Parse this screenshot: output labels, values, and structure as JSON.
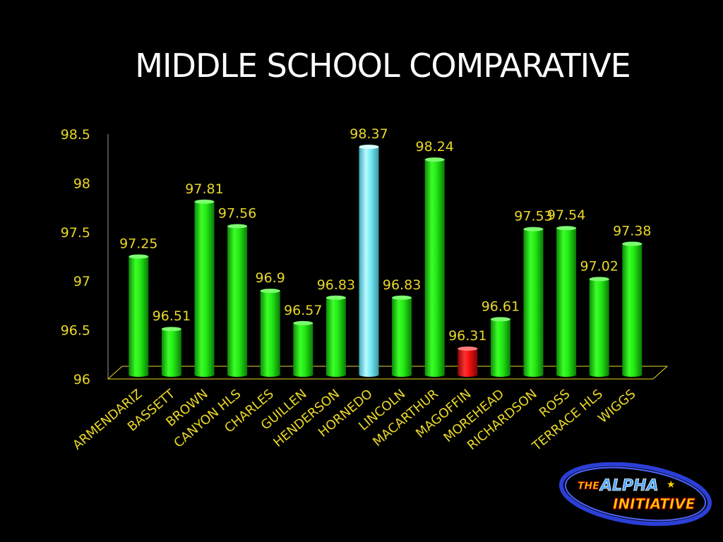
{
  "slide": {
    "title": "MIDDLE SCHOOL COMPARATIVE"
  },
  "logo": {
    "line1a": "THE",
    "line1b": "ALPHA",
    "line2": "INITIATIVE"
  },
  "colors": {
    "background": "#000000",
    "title": "#ffffff",
    "labels": "#e9d829",
    "bar_default": "#22e814",
    "bar_highest": "#74e8f2",
    "bar_lowest": "#f01010"
  },
  "chart_data": {
    "type": "bar",
    "style": "3d-cylinder",
    "title": "MIDDLE SCHOOL COMPARATIVE",
    "xlabel": "",
    "ylabel": "",
    "ylim": [
      96,
      98.5
    ],
    "yticks": [
      96,
      96.5,
      97,
      97.5,
      98,
      98.5
    ],
    "ytick_labels": [
      "96",
      "96.5",
      "97",
      "97.5",
      "98",
      "98.5"
    ],
    "grid": false,
    "legend": "none",
    "categories": [
      "ARMENDARIZ",
      "BASSETT",
      "BROWN",
      "CANYON HLS",
      "CHARLES",
      "GUILLEN",
      "HENDERSON",
      "HORNEDO",
      "LINCOLN",
      "MACARTHUR",
      "MAGOFFIN",
      "MOREHEAD",
      "RICHARDSON",
      "ROSS",
      "TERRACE HLS",
      "WIGGS"
    ],
    "values": [
      97.25,
      96.51,
      97.81,
      97.56,
      96.9,
      96.57,
      96.83,
      98.37,
      96.83,
      98.24,
      96.31,
      96.61,
      97.53,
      97.54,
      97.02,
      97.38
    ],
    "value_labels": [
      "97.25",
      "96.51",
      "97.81",
      "97.56",
      "96.9",
      "96.57",
      "96.83",
      "98.37",
      "96.83",
      "98.24",
      "96.31",
      "96.61",
      "97.53",
      "97.54",
      "97.02",
      "97.38"
    ],
    "highlight": {
      "highest": "HORNEDO",
      "lowest": "MAGOFFIN"
    }
  }
}
